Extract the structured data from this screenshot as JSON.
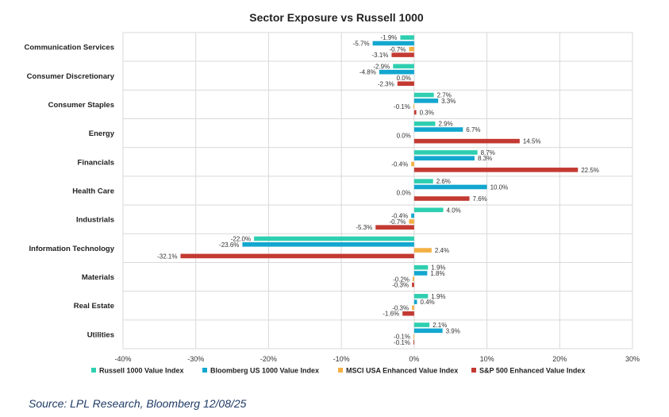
{
  "chart_data": {
    "type": "bar",
    "orientation": "horizontal",
    "title": "Sector Exposure vs Russell 1000",
    "xlabel": "",
    "ylabel": "",
    "xlim": [
      -40,
      30
    ],
    "xticks": [
      "-40%",
      "-30%",
      "-20%",
      "-10%",
      "0%",
      "10%",
      "20%",
      "30%"
    ],
    "xtick_values": [
      -40,
      -30,
      -20,
      -10,
      0,
      10,
      20,
      30
    ],
    "grid": true,
    "legend_position": "bottom",
    "categories": [
      "Communication Services",
      "Consumer Discretionary",
      "Consumer Staples",
      "Energy",
      "Financials",
      "Health Care",
      "Industrials",
      "Information Technology",
      "Materials",
      "Real Estate",
      "Utilities"
    ],
    "series": [
      {
        "name": "Russell 1000 Value Index",
        "color": "#2ecfb0",
        "values": [
          -1.9,
          -2.9,
          2.7,
          2.9,
          8.7,
          2.6,
          4.0,
          -22.0,
          1.9,
          1.9,
          2.1
        ]
      },
      {
        "name": "Bloomberg US 1000 Value Index",
        "color": "#13a7cf",
        "values": [
          -5.7,
          -4.8,
          3.3,
          6.7,
          8.3,
          10.0,
          -0.4,
          -23.6,
          1.8,
          0.4,
          3.9
        ]
      },
      {
        "name": "MSCI USA Enhanced Value Index",
        "color": "#f3b043",
        "values": [
          -0.7,
          0.0,
          -0.1,
          0.0,
          -0.4,
          0.0,
          -0.7,
          2.4,
          -0.2,
          -0.3,
          -0.1
        ]
      },
      {
        "name": "S&P 500 Enhanced Value Index",
        "color": "#c33a32",
        "values": [
          -3.1,
          -2.3,
          0.3,
          14.5,
          22.5,
          7.6,
          -5.3,
          -32.1,
          -0.3,
          -1.6,
          -0.1
        ]
      }
    ]
  },
  "source_note": "Source: LPL Research, Bloomberg 12/08/25"
}
